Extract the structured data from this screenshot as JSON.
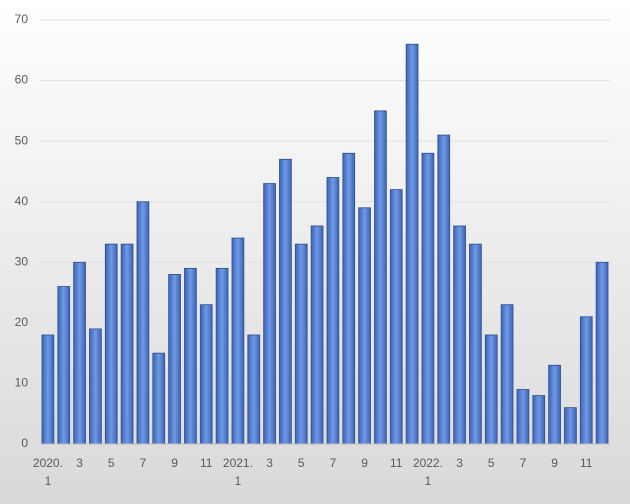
{
  "chart_data": {
    "type": "bar",
    "categories": [
      [
        "2020.",
        "1"
      ],
      null,
      "3",
      null,
      "5",
      null,
      "7",
      null,
      "9",
      null,
      "11",
      null,
      [
        "2021.",
        "1"
      ],
      null,
      "3",
      null,
      "5",
      null,
      "7",
      null,
      "9",
      null,
      "11",
      null,
      [
        "2022.",
        "1"
      ],
      null,
      "3",
      null,
      "5",
      null,
      "7",
      null,
      "9",
      null,
      "11",
      null
    ],
    "values": [
      18,
      26,
      30,
      19,
      33,
      33,
      40,
      15,
      28,
      29,
      23,
      29,
      34,
      18,
      43,
      47,
      33,
      36,
      44,
      48,
      39,
      55,
      42,
      66,
      48,
      51,
      36,
      33,
      18,
      23,
      9,
      8,
      13,
      6,
      21,
      30
    ],
    "color": "#4f7bd0",
    "ylim": [
      0,
      70
    ],
    "yticks": [
      0,
      10,
      20,
      30,
      40,
      50,
      60,
      70
    ],
    "grid": true
  }
}
